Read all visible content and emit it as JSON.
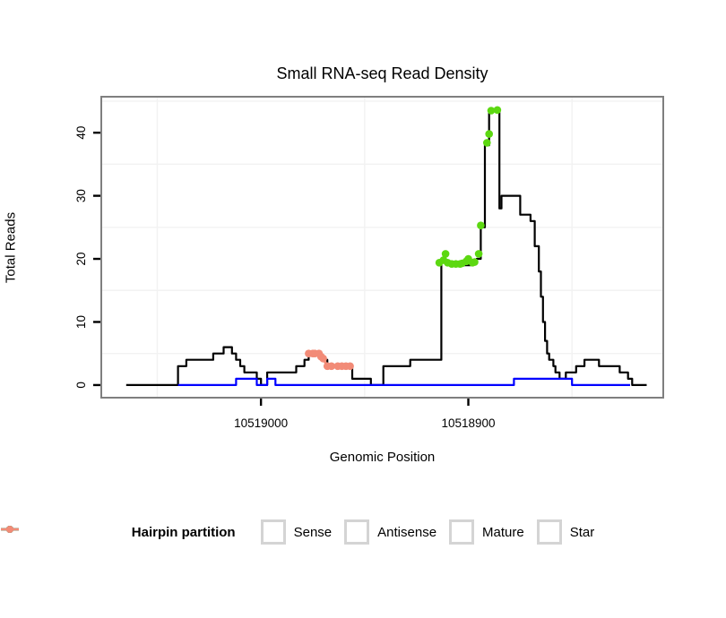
{
  "chart_data": {
    "type": "line",
    "title": "Small RNA-seq Read Density",
    "xlabel": "Genomic Position",
    "ylabel": "Total Reads",
    "x_axis": {
      "label": "Genomic Position",
      "reversed": true,
      "domain": [
        10519077,
        10518806
      ],
      "ticks": [
        {
          "value": 10519000,
          "label": "10519000"
        },
        {
          "value": 10518900,
          "label": "10518900"
        }
      ],
      "minor": [
        10519050,
        10518950,
        10518850
      ]
    },
    "y_axis": {
      "label": "Total Reads",
      "domain": [
        -2,
        45.7
      ],
      "ticks": [
        {
          "value": 0,
          "label": "0"
        },
        {
          "value": 10,
          "label": "10"
        },
        {
          "value": 20,
          "label": "20"
        },
        {
          "value": 30,
          "label": "30"
        },
        {
          "value": 40,
          "label": "40"
        }
      ],
      "minor": [
        5,
        15,
        25,
        35,
        45
      ]
    },
    "series": [
      {
        "name": "Sense",
        "render": "step",
        "color": "#000000",
        "end_position": 10518814,
        "points": [
          [
            10519065,
            0
          ],
          [
            10519040,
            3
          ],
          [
            10519036,
            4
          ],
          [
            10519023,
            5
          ],
          [
            10519018,
            6
          ],
          [
            10519014,
            5
          ],
          [
            10519012,
            4
          ],
          [
            10519010,
            3
          ],
          [
            10519008,
            2
          ],
          [
            10519002,
            1
          ],
          [
            10519000,
            0
          ],
          [
            10518997,
            2
          ],
          [
            10518983,
            3
          ],
          [
            10518979,
            4
          ],
          [
            10518977,
            5
          ],
          [
            10518971,
            4
          ],
          [
            10518968,
            3
          ],
          [
            10518956,
            1
          ],
          [
            10518947,
            0
          ],
          [
            10518941,
            3
          ],
          [
            10518928,
            4
          ],
          [
            10518913,
            19.5
          ],
          [
            10518906,
            19
          ],
          [
            10518899,
            19.5
          ],
          [
            10518896,
            20
          ],
          [
            10518894,
            25
          ],
          [
            10518892,
            38
          ],
          [
            10518890,
            43.5
          ],
          [
            10518885,
            28
          ],
          [
            10518884,
            30
          ],
          [
            10518875,
            27
          ],
          [
            10518870,
            26
          ],
          [
            10518868,
            22
          ],
          [
            10518866,
            18
          ],
          [
            10518865,
            14
          ],
          [
            10518864,
            10
          ],
          [
            10518863,
            7
          ],
          [
            10518862,
            5
          ],
          [
            10518861,
            4
          ],
          [
            10518859,
            3
          ],
          [
            10518858,
            2
          ],
          [
            10518856,
            1
          ],
          [
            10518853,
            2
          ],
          [
            10518848,
            3
          ],
          [
            10518844,
            4
          ],
          [
            10518837,
            3
          ],
          [
            10518827,
            2
          ],
          [
            10518823,
            1
          ],
          [
            10518821,
            0
          ]
        ]
      },
      {
        "name": "Antisense",
        "render": "step",
        "color": "#0000FF",
        "end_position": 10518822,
        "points": [
          [
            10519040,
            0
          ],
          [
            10519012,
            1
          ],
          [
            10519002,
            0
          ],
          [
            10518997,
            1
          ],
          [
            10518993,
            0
          ],
          [
            10518878,
            1
          ],
          [
            10518850,
            0
          ]
        ]
      },
      {
        "name": "Star",
        "render": "points-line",
        "color": "#F28B77",
        "points": [
          [
            10518977,
            5
          ],
          [
            10518975,
            5
          ],
          [
            10518974,
            5
          ],
          [
            10518972,
            5
          ],
          [
            10518971,
            4.5
          ],
          [
            10518970,
            4.2
          ],
          [
            10518968,
            3
          ],
          [
            10518966,
            3
          ],
          [
            10518963,
            3
          ],
          [
            10518961,
            3
          ],
          [
            10518959,
            3
          ],
          [
            10518957,
            3
          ]
        ]
      },
      {
        "name": "Mature",
        "render": "points",
        "color": "#5CD811",
        "points": [
          [
            10518914,
            19.4
          ],
          [
            10518912,
            19.8
          ],
          [
            10518911,
            20.8
          ],
          [
            10518910,
            19.4
          ],
          [
            10518908,
            19.2
          ],
          [
            10518906,
            19.2
          ],
          [
            10518904,
            19.2
          ],
          [
            10518903,
            19.3
          ],
          [
            10518901,
            19.6
          ],
          [
            10518900,
            20.0
          ],
          [
            10518898,
            19.4
          ],
          [
            10518897,
            19.5
          ],
          [
            10518895,
            20.8
          ],
          [
            10518894,
            25.3
          ],
          [
            10518891,
            38.4
          ],
          [
            10518890,
            39.8
          ],
          [
            10518889,
            43.5
          ],
          [
            10518886,
            43.6
          ]
        ]
      }
    ],
    "style": {
      "panel_border": "#7f7f7f",
      "grid_minor": "#f2f2f2",
      "tick_color": "#000000"
    }
  },
  "legend": {
    "title": "Hairpin partition",
    "items": [
      {
        "label": "Sense",
        "color": "#000000"
      },
      {
        "label": "Antisense",
        "color": "#0000FF"
      },
      {
        "label": "Mature",
        "color": "#5CD811"
      },
      {
        "label": "Star",
        "color": "#F28B77"
      }
    ]
  }
}
